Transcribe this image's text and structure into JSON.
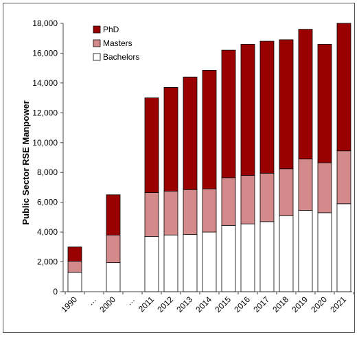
{
  "chart_data": {
    "type": "bar",
    "stacked": true,
    "categories": [
      "1990",
      "…",
      "2000",
      "…",
      "2011",
      "2012",
      "2013",
      "2014",
      "2015",
      "2016",
      "2017",
      "2018",
      "2019",
      "2020",
      "2021"
    ],
    "series": [
      {
        "name": "Bachelors",
        "color": "#ffffff",
        "values": [
          1300,
          null,
          1950,
          null,
          3700,
          3800,
          3850,
          4000,
          4450,
          4550,
          4700,
          5100,
          5450,
          5300,
          5900
        ]
      },
      {
        "name": "Masters",
        "color": "#d48a8a",
        "values": [
          750,
          null,
          1850,
          null,
          2950,
          2950,
          3000,
          2900,
          3200,
          3250,
          3250,
          3150,
          3450,
          3350,
          3550
        ]
      },
      {
        "name": "PhD",
        "color": "#9b0000",
        "values": [
          950,
          null,
          2700,
          null,
          6350,
          6950,
          7550,
          7950,
          8550,
          8800,
          8850,
          8650,
          8700,
          7950,
          8550
        ]
      }
    ],
    "legend_order": [
      "PhD",
      "Masters",
      "Bachelors"
    ],
    "legend_position": "top-left",
    "ylabel": "Public Sector RSE Manpower",
    "xlabel": "",
    "ylim": [
      0,
      18000
    ],
    "yticks": [
      "0",
      "2,000",
      "4,000",
      "6,000",
      "8,000",
      "10,000",
      "12,000",
      "14,000",
      "16,000",
      "18,000"
    ],
    "grid": false
  }
}
